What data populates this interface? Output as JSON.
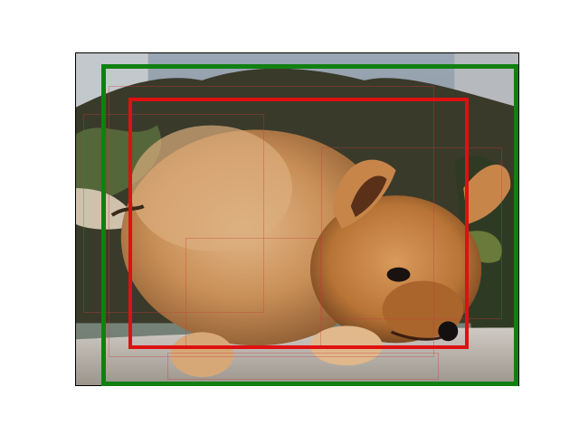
{
  "image": {
    "subject-icon": "pomeranian-puppy-photo",
    "colors": {
      "ground_truth_box": "#118011",
      "predicted_box": "#e01010",
      "proposal_box": "#c83c3c"
    }
  }
}
